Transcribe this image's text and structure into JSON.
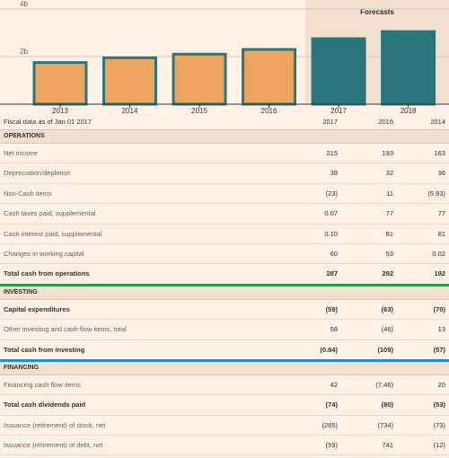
{
  "chart_data": {
    "type": "bar",
    "categories": [
      "2013",
      "2014",
      "2015",
      "2016",
      "2017",
      "2018"
    ],
    "values": [
      1.75,
      1.95,
      2.1,
      2.3,
      2.75,
      3.05
    ],
    "forecast_from_index": 4,
    "forecast_label": "Forecasts",
    "y_ticks": [
      {
        "value": 2,
        "label": "2b"
      },
      {
        "value": 4,
        "label": "4b"
      }
    ],
    "ylim": [
      0,
      4
    ],
    "colors": {
      "actual": "#eda45e",
      "forecast": "#29777b",
      "edge": "#29777b",
      "forecast_bg": "#f2dfce"
    }
  },
  "table": {
    "header": {
      "label": "Fiscal data as of Jan 01 2017",
      "cols": [
        "2017",
        "2016",
        "2014"
      ]
    },
    "sections": [
      {
        "title": "OPERATIONS",
        "rows": [
          {
            "label": "Net income",
            "values": [
              "215",
              "193",
              "163"
            ],
            "style": "plain"
          },
          {
            "label": "Depreciation/depletion",
            "values": [
              "38",
              "32",
              "36"
            ],
            "style": "plain"
          },
          {
            "label": "Non-Cash items",
            "values": [
              "(23)",
              "11",
              "(5.93)"
            ],
            "style": "plain"
          },
          {
            "label": "Cash taxes paid, supplemental",
            "values": [
              "0.07",
              "77",
              "77"
            ],
            "style": "plain"
          },
          {
            "label": "Cash interest paid, supplemental",
            "values": [
              "0.10",
              "81",
              "81"
            ],
            "style": "plain"
          },
          {
            "label": "Changes in working capital",
            "values": [
              "60",
              "53",
              "0.02"
            ],
            "style": "plain"
          },
          {
            "label": "Total cash from operations",
            "values": [
              "287",
              "292",
              "192"
            ],
            "style": "bold total-green"
          }
        ]
      },
      {
        "title": "INVESTING",
        "rows": [
          {
            "label": "Capital expenditures",
            "values": [
              "(59)",
              "(63)",
              "(70)"
            ],
            "style": "bold"
          },
          {
            "label": "Other investing and cash flow items, total",
            "values": [
              "58",
              "(46)",
              "13"
            ],
            "style": "plain"
          },
          {
            "label": "Total cash from investing",
            "values": [
              "(0.84)",
              "(109)",
              "(57)"
            ],
            "style": "bold total-blue"
          }
        ]
      },
      {
        "title": "FINANCING",
        "rows": [
          {
            "label": "Financing cash flow items",
            "values": [
              "42",
              "(7.46)",
              "20"
            ],
            "style": "plain"
          },
          {
            "label": "Total cash dividends paid",
            "values": [
              "(74)",
              "(80)",
              "(53)"
            ],
            "style": "bold"
          },
          {
            "label": "Issuance (retirement) of stock, net",
            "values": [
              "(285)",
              "(734)",
              "(73)"
            ],
            "style": "plain"
          },
          {
            "label": "Issuance (retirement) of debt, net",
            "values": [
              "(59)",
              "741",
              "(12)"
            ],
            "style": "plain"
          }
        ]
      }
    ]
  }
}
